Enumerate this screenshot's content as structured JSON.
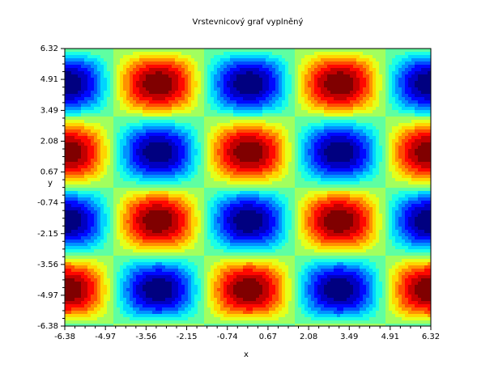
{
  "chart_data": {
    "type": "contour",
    "title": "Vrstevnicový graf  vyplněný",
    "x_label": "x",
    "y_label": "y",
    "xlim": [
      -6.38,
      6.32
    ],
    "ylim": [
      -6.38,
      6.32
    ],
    "xticks": [
      -6.38,
      -4.97,
      -3.56,
      -2.15,
      -0.74,
      0.67,
      2.08,
      3.49,
      4.91,
      6.32
    ],
    "yticks": [
      -6.38,
      -4.97,
      -3.56,
      -2.15,
      -0.74,
      0.67,
      2.08,
      3.49,
      4.91,
      6.32
    ],
    "colormap": "jet"
  }
}
